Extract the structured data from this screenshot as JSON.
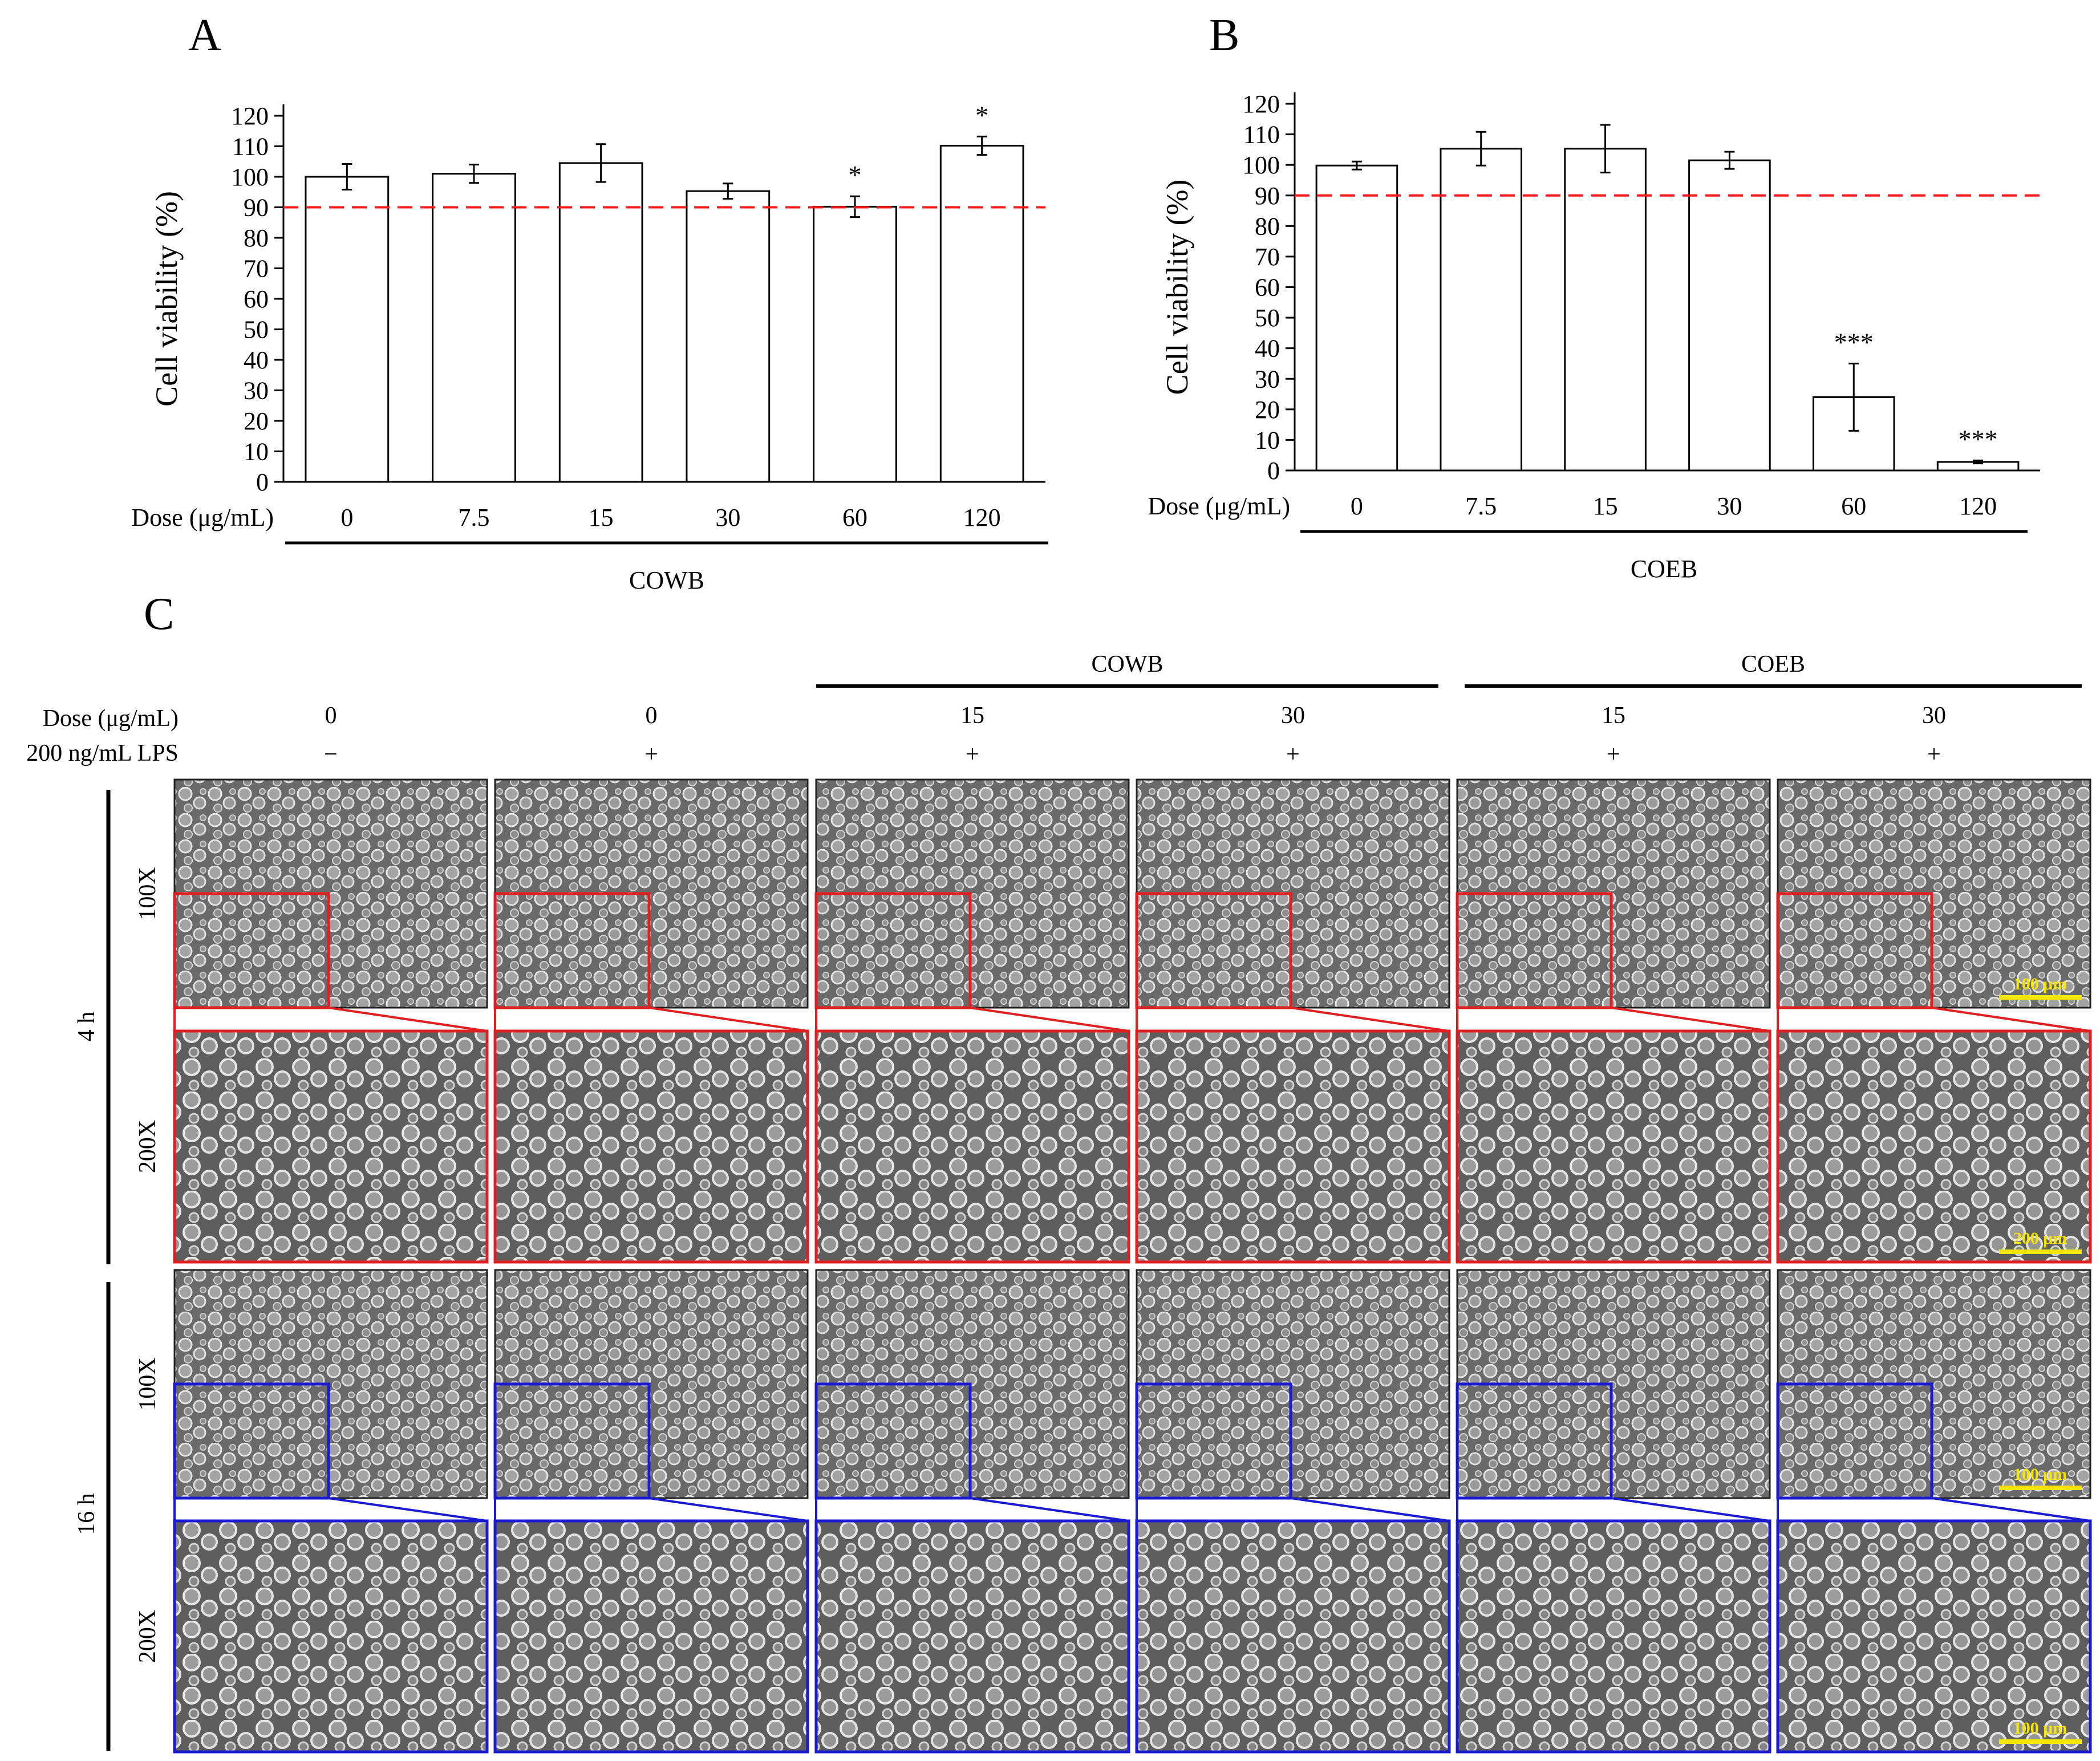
{
  "panels": {
    "a": "A",
    "b": "B",
    "c": "C"
  },
  "chart_data": [
    {
      "type": "bar",
      "panel": "A",
      "ylabel": "Cell viability (%)",
      "xlabel": "Dose (μg/mL)",
      "group_label": "COWB",
      "categories": [
        "0",
        "7.5",
        "15",
        "30",
        "60",
        "120"
      ],
      "values": [
        100,
        101,
        104.5,
        95.3,
        90.2,
        110.2
      ],
      "errors": [
        4.2,
        3,
        6.2,
        2.5,
        3.4,
        3
      ],
      "significance": [
        "",
        "",
        "",
        "",
        "*",
        "*"
      ],
      "reference_line": 90,
      "ylim": [
        0,
        120
      ],
      "yticks": [
        0,
        10,
        20,
        30,
        40,
        50,
        60,
        70,
        80,
        90,
        100,
        110,
        120
      ],
      "grid": false
    },
    {
      "type": "bar",
      "panel": "B",
      "ylabel": "Cell viability (%)",
      "xlabel": "Dose (μg/mL)",
      "group_label": "COEB",
      "categories": [
        "0",
        "7.5",
        "15",
        "30",
        "60",
        "120"
      ],
      "values": [
        99.8,
        105.3,
        105.3,
        101.5,
        24,
        2.8
      ],
      "errors": [
        1.3,
        5.5,
        7.8,
        2.8,
        11,
        0.5
      ],
      "significance": [
        "",
        "",
        "",
        "",
        "***",
        "***"
      ],
      "reference_line": 90,
      "ylim": [
        0,
        120
      ],
      "yticks": [
        0,
        10,
        20,
        30,
        40,
        50,
        60,
        70,
        80,
        90,
        100,
        110,
        120
      ],
      "grid": false
    }
  ],
  "micrographs": {
    "dose_label": "Dose (μg/mL)",
    "lps_label": "200 ng/mL LPS",
    "group_labels": [
      "COWB",
      "COEB"
    ],
    "columns": [
      {
        "dose": "0",
        "lps": "−"
      },
      {
        "dose": "0",
        "lps": "+"
      },
      {
        "dose": "15",
        "lps": "+"
      },
      {
        "dose": "30",
        "lps": "+"
      },
      {
        "dose": "15",
        "lps": "+"
      },
      {
        "dose": "30",
        "lps": "+"
      }
    ],
    "time_points": [
      {
        "label": "4 h",
        "rows": [
          "100X",
          "200X"
        ],
        "frame_color": "#e02020"
      },
      {
        "label": "16 h",
        "rows": [
          "100X",
          "200X"
        ],
        "frame_color": "#1a1ad0"
      }
    ],
    "scale_bars": [
      "100 μm",
      "200 μm",
      "100 μm",
      "100 μm"
    ],
    "scale_bar_color": "#f5e500"
  }
}
